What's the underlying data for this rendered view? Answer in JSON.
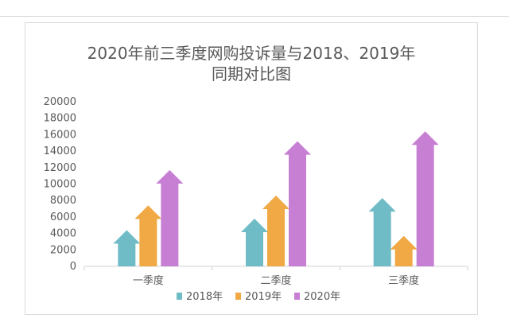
{
  "chart_data": {
    "type": "bar",
    "title_line1": "2020年前三季度网购投诉量与2018、2019年",
    "title_line2": "同期对比图",
    "categories": [
      "一季度",
      "二季度",
      "三季度"
    ],
    "series": [
      {
        "name": "2018年",
        "color": "#6fbcc7",
        "values": [
          4400,
          5800,
          8300
        ]
      },
      {
        "name": "2019年",
        "color": "#f0a944",
        "values": [
          7400,
          8600,
          3700
        ]
      },
      {
        "name": "2020年",
        "color": "#c77fd4",
        "values": [
          11700,
          15200,
          16400
        ]
      }
    ],
    "ylim": [
      0,
      20000
    ],
    "yticks": [
      "0",
      "2000",
      "4000",
      "6000",
      "8000",
      "10000",
      "12000",
      "14000",
      "16000",
      "18000",
      "20000"
    ],
    "legend_position": "bottom",
    "bar_shape": "arrow"
  }
}
